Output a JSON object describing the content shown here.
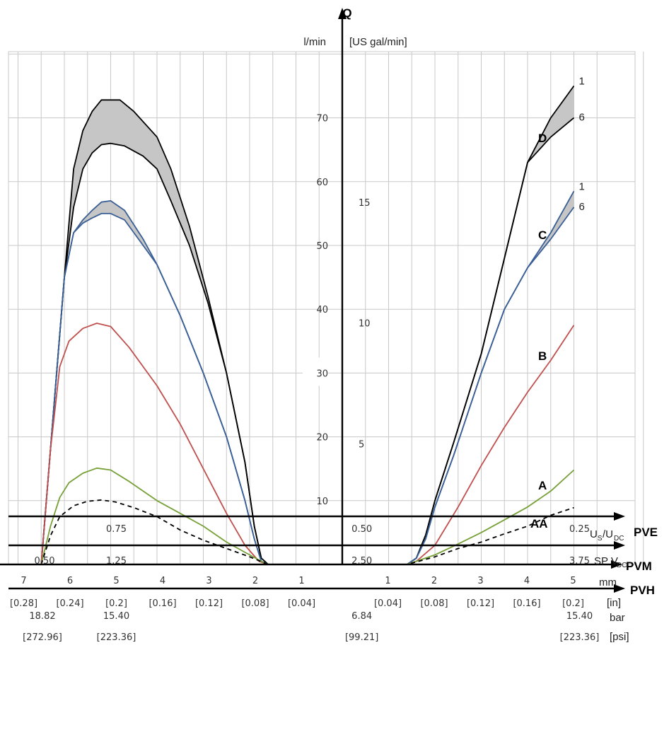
{
  "chart_data": {
    "type": "line",
    "y_axis": {
      "name": "Q",
      "unit_left": "l/min",
      "unit_right": "[US gal/min]",
      "ticks_lpm": [
        10,
        20,
        30,
        40,
        50,
        60,
        70
      ],
      "ticks_gpm": [
        5,
        10,
        15
      ],
      "ylim": [
        0,
        80
      ]
    },
    "x_axis": {
      "name": "PVM",
      "unit_mm": "mm",
      "unit_in": "[in]",
      "left_ticks_mm": [
        "7",
        "6",
        "5",
        "4",
        "3",
        "2",
        "1"
      ],
      "left_ticks_in": [
        "[0.28]",
        "[0.24]",
        "[0.2]",
        "[0.16]",
        "[0.12]",
        "[0.08]",
        "[0.04]"
      ],
      "right_ticks_mm": [
        "1",
        "2",
        "3",
        "4",
        "5"
      ],
      "right_ticks_in": [
        "[0.04]",
        "[0.08]",
        "[0.12]",
        "[0.16]",
        "[0.2]"
      ],
      "xlim": [
        -7.3,
        6.4
      ]
    },
    "pve_axis": {
      "name": "PVE",
      "label": "Us/UDC",
      "ticks": [
        {
          "text": "0.75",
          "mm": -5
        },
        {
          "text": "0.50",
          "mm": 0.3
        },
        {
          "text": "0.25",
          "mm": 5
        }
      ],
      "sp_label": "SP VDC",
      "sp_ticks": [
        {
          "text": "0.50",
          "mm": -7
        },
        {
          "text": "1.25",
          "mm": -5
        },
        {
          "text": "2.50",
          "mm": 0.3
        },
        {
          "text": "3.75",
          "mm": 5
        }
      ]
    },
    "pvh_axis": {
      "name": "PVH",
      "unit_bar": "bar",
      "unit_psi": "[psi]",
      "ticks": [
        {
          "bar": "18.82",
          "psi": "[272.96]",
          "mm": -7
        },
        {
          "bar": "15.40",
          "psi": "[223.36]",
          "mm": -5
        },
        {
          "bar": "6.84",
          "psi": "[99.21]",
          "mm": 0.3
        },
        {
          "bar": "15.40",
          "psi": "[223.36]",
          "mm": 5
        }
      ]
    },
    "series": [
      {
        "name": "D",
        "color": "#000000",
        "dashed": false,
        "end_labels": [
          "1",
          "6"
        ],
        "band": true,
        "upper": [
          [
            -6.5,
            0
          ],
          [
            -6.2,
            27
          ],
          [
            -6,
            45
          ],
          [
            -5.8,
            62
          ],
          [
            -5.6,
            68
          ],
          [
            -5.4,
            71
          ],
          [
            -5.2,
            72.8
          ],
          [
            -4.8,
            72.8
          ],
          [
            -4.5,
            71
          ],
          [
            -4,
            67
          ],
          [
            -3.7,
            62
          ],
          [
            -3.3,
            53
          ],
          [
            -2.9,
            42
          ],
          [
            -2.5,
            30
          ],
          [
            -2.1,
            16
          ],
          [
            -1.9,
            6
          ],
          [
            -1.75,
            1
          ],
          [
            -1.6,
            0
          ],
          [
            -0.3,
            0
          ],
          [
            1.4,
            0
          ],
          [
            1.6,
            1
          ],
          [
            1.8,
            4.6
          ],
          [
            2,
            10
          ],
          [
            2.4,
            19
          ],
          [
            3,
            33
          ],
          [
            3.5,
            48
          ],
          [
            4,
            63
          ],
          [
            4.5,
            70
          ],
          [
            5,
            75
          ]
        ],
        "lower": [
          [
            -6.5,
            0
          ],
          [
            -6.2,
            27
          ],
          [
            -6,
            45
          ],
          [
            -5.8,
            56
          ],
          [
            -5.6,
            62
          ],
          [
            -5.4,
            64.5
          ],
          [
            -5.2,
            65.8
          ],
          [
            -5,
            66
          ],
          [
            -4.7,
            65.6
          ],
          [
            -4.3,
            64
          ],
          [
            -4,
            62
          ],
          [
            -3.7,
            57
          ],
          [
            -3.3,
            50
          ],
          [
            -2.9,
            41
          ],
          [
            -2.5,
            30
          ],
          [
            -2.1,
            16
          ],
          [
            -1.9,
            6
          ],
          [
            -1.75,
            1
          ],
          [
            -1.6,
            0
          ],
          [
            -0.3,
            0
          ],
          [
            1.4,
            0
          ],
          [
            1.6,
            1
          ],
          [
            1.8,
            4.6
          ],
          [
            2,
            10
          ],
          [
            2.4,
            19
          ],
          [
            3,
            33
          ],
          [
            3.5,
            48
          ],
          [
            4,
            63
          ],
          [
            4.5,
            67
          ],
          [
            5,
            70
          ]
        ]
      },
      {
        "name": "C",
        "color": "#3a5f96",
        "dashed": false,
        "end_labels": [
          "1",
          "6"
        ],
        "band": true,
        "upper": [
          [
            -6.5,
            0
          ],
          [
            -6.2,
            27
          ],
          [
            -6,
            45
          ],
          [
            -5.8,
            52
          ],
          [
            -5.6,
            54
          ],
          [
            -5.4,
            55.5
          ],
          [
            -5.2,
            56.8
          ],
          [
            -5,
            57
          ],
          [
            -4.7,
            55.5
          ],
          [
            -4.3,
            51
          ],
          [
            -4,
            47
          ],
          [
            -3.5,
            39
          ],
          [
            -3,
            30
          ],
          [
            -2.5,
            20
          ],
          [
            -2.1,
            10
          ],
          [
            -1.9,
            4
          ],
          [
            -1.75,
            0.5
          ],
          [
            -1.6,
            0
          ],
          [
            -0.3,
            0
          ],
          [
            1.4,
            0
          ],
          [
            1.6,
            1
          ],
          [
            1.8,
            4
          ],
          [
            2,
            9
          ],
          [
            2.4,
            17
          ],
          [
            3,
            30
          ],
          [
            3.5,
            40
          ],
          [
            4,
            46.5
          ],
          [
            4.5,
            52
          ],
          [
            5,
            58.5
          ]
        ],
        "lower": [
          [
            -6.5,
            0
          ],
          [
            -6.2,
            27
          ],
          [
            -6,
            45
          ],
          [
            -5.8,
            52
          ],
          [
            -5.6,
            53.5
          ],
          [
            -5.4,
            54.3
          ],
          [
            -5.2,
            55
          ],
          [
            -5,
            55
          ],
          [
            -4.7,
            54
          ],
          [
            -4.3,
            50
          ],
          [
            -4,
            47
          ],
          [
            -3.5,
            39
          ],
          [
            -3,
            30
          ],
          [
            -2.5,
            20
          ],
          [
            -2.1,
            10
          ],
          [
            -1.9,
            4
          ],
          [
            -1.75,
            0.5
          ],
          [
            -1.6,
            0
          ],
          [
            -0.3,
            0
          ],
          [
            1.4,
            0
          ],
          [
            1.6,
            1
          ],
          [
            1.8,
            4
          ],
          [
            2,
            9
          ],
          [
            2.4,
            17
          ],
          [
            3,
            30
          ],
          [
            3.5,
            40
          ],
          [
            4,
            46.5
          ],
          [
            4.5,
            51
          ],
          [
            5,
            56
          ]
        ]
      },
      {
        "name": "B",
        "color": "#c0504d",
        "dashed": false,
        "points": [
          [
            -6.5,
            0
          ],
          [
            -6.3,
            18
          ],
          [
            -6.1,
            31
          ],
          [
            -5.9,
            35
          ],
          [
            -5.6,
            37
          ],
          [
            -5.3,
            37.8
          ],
          [
            -5,
            37.3
          ],
          [
            -4.6,
            34
          ],
          [
            -4,
            28
          ],
          [
            -3.5,
            22
          ],
          [
            -3,
            15
          ],
          [
            -2.5,
            8
          ],
          [
            -2.1,
            3
          ],
          [
            -1.8,
            0.5
          ],
          [
            -1.6,
            0
          ],
          [
            -0.3,
            0
          ],
          [
            1.4,
            0
          ],
          [
            1.6,
            0.5
          ],
          [
            2,
            3
          ],
          [
            2.5,
            9
          ],
          [
            3,
            15.5
          ],
          [
            3.5,
            21.5
          ],
          [
            4,
            27
          ],
          [
            4.5,
            32
          ],
          [
            5,
            37.5
          ]
        ]
      },
      {
        "name": "A",
        "color": "#77a038",
        "dashed": false,
        "points": [
          [
            -6.5,
            0
          ],
          [
            -6.3,
            6
          ],
          [
            -6.1,
            10.5
          ],
          [
            -5.9,
            12.8
          ],
          [
            -5.6,
            14.3
          ],
          [
            -5.3,
            15.1
          ],
          [
            -5,
            14.8
          ],
          [
            -4.6,
            13
          ],
          [
            -4,
            10
          ],
          [
            -3.5,
            8
          ],
          [
            -3,
            6
          ],
          [
            -2.5,
            3.5
          ],
          [
            -2,
            1.5
          ],
          [
            -1.7,
            0.3
          ],
          [
            -1.6,
            0
          ],
          [
            -0.3,
            0
          ],
          [
            1.4,
            0
          ],
          [
            2,
            1.5
          ],
          [
            2.5,
            3.2
          ],
          [
            3,
            5
          ],
          [
            3.5,
            7
          ],
          [
            4,
            9
          ],
          [
            4.5,
            11.5
          ],
          [
            5,
            14.8
          ]
        ]
      },
      {
        "name": "AA",
        "color": "#000000",
        "dashed": true,
        "points": [
          [
            -6.5,
            0
          ],
          [
            -6.3,
            4.5
          ],
          [
            -6.1,
            7.5
          ],
          [
            -5.8,
            9.2
          ],
          [
            -5.5,
            9.9
          ],
          [
            -5.2,
            10.1
          ],
          [
            -4.9,
            9.8
          ],
          [
            -4.5,
            8.9
          ],
          [
            -4,
            7.5
          ],
          [
            -3.5,
            5.4
          ],
          [
            -3,
            3.8
          ],
          [
            -2.5,
            2.5
          ],
          [
            -2,
            1.2
          ],
          [
            -1.7,
            0.3
          ],
          [
            -1.6,
            0
          ],
          [
            -0.3,
            0
          ],
          [
            1.4,
            0
          ],
          [
            2,
            1.2
          ],
          [
            2.5,
            2.5
          ],
          [
            3,
            3.5
          ],
          [
            3.5,
            4.8
          ],
          [
            4,
            6
          ],
          [
            4.5,
            7.7
          ],
          [
            5,
            8.9
          ]
        ]
      }
    ],
    "colors": {
      "band_fill": "#c6c6c6",
      "grid": "#c8c8c8",
      "axis": "#000000"
    },
    "grid": true
  }
}
